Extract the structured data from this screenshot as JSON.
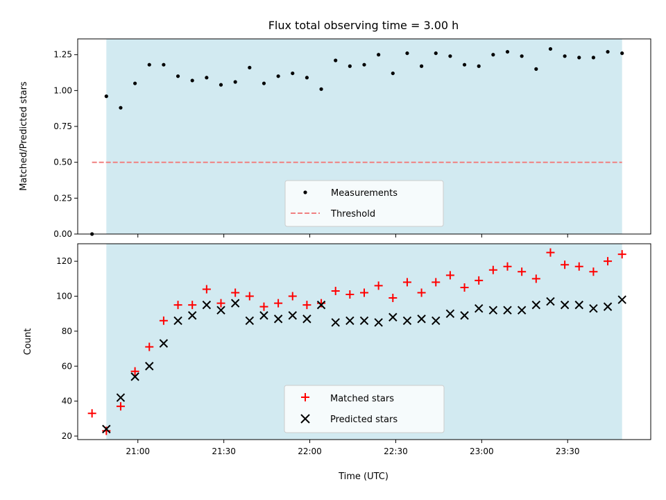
{
  "chart_data": [
    {
      "type": "scatter",
      "title": "Flux total observing time = 3.00 h",
      "xlabel": "",
      "ylabel": "Matched/Predicted stars",
      "xlim": [
        "20:39",
        "23:59"
      ],
      "ylim": [
        0.0,
        1.36
      ],
      "yticks": [
        "0.00",
        "0.25",
        "0.50",
        "0.75",
        "1.00",
        "1.25"
      ],
      "shaded_interval": [
        "20:49",
        "23:49"
      ],
      "shade_color": "#add8e6",
      "legend_position": "lower center",
      "series": [
        {
          "name": "Measurements",
          "marker": "dot",
          "color": "#000000",
          "x": [
            "20:44",
            "20:49",
            "20:54",
            "20:59",
            "21:04",
            "21:09",
            "21:14",
            "21:19",
            "21:24",
            "21:29",
            "21:34",
            "21:39",
            "21:44",
            "21:49",
            "21:54",
            "21:59",
            "22:04",
            "22:09",
            "22:14",
            "22:19",
            "22:24",
            "22:29",
            "22:34",
            "22:39",
            "22:44",
            "22:49",
            "22:54",
            "22:59",
            "23:04",
            "23:09",
            "23:14",
            "23:19",
            "23:24",
            "23:29",
            "23:34",
            "23:39",
            "23:44",
            "23:49"
          ],
          "y": [
            0.0,
            0.96,
            0.88,
            1.05,
            1.18,
            1.18,
            1.1,
            1.07,
            1.09,
            1.04,
            1.06,
            1.16,
            1.05,
            1.1,
            1.12,
            1.09,
            1.01,
            1.21,
            1.17,
            1.18,
            1.25,
            1.12,
            1.26,
            1.17,
            1.26,
            1.24,
            1.18,
            1.17,
            1.25,
            1.27,
            1.24,
            1.15,
            1.29,
            1.24,
            1.23,
            1.23,
            1.27,
            1.26
          ]
        },
        {
          "name": "Threshold",
          "style": "dashed",
          "color": "#f08080",
          "x": [
            "20:44",
            "23:49"
          ],
          "y": [
            0.5,
            0.5
          ]
        }
      ]
    },
    {
      "type": "scatter",
      "title": "",
      "xlabel": "Time (UTC)",
      "ylabel": "Count",
      "xlim": [
        "20:39",
        "23:59"
      ],
      "ylim": [
        18,
        130
      ],
      "xticks": [
        "21:00",
        "21:30",
        "22:00",
        "22:30",
        "23:00",
        "23:30"
      ],
      "yticks": [
        "20",
        "40",
        "60",
        "80",
        "100",
        "120"
      ],
      "shaded_interval": [
        "20:49",
        "23:49"
      ],
      "shade_color": "#add8e6",
      "legend_position": "lower center",
      "series": [
        {
          "name": "Matched stars",
          "marker": "plus",
          "color": "#ff0000",
          "x": [
            "20:44",
            "20:49",
            "20:54",
            "20:59",
            "21:04",
            "21:09",
            "21:14",
            "21:19",
            "21:24",
            "21:29",
            "21:34",
            "21:39",
            "21:44",
            "21:49",
            "21:54",
            "21:59",
            "22:04",
            "22:09",
            "22:14",
            "22:19",
            "22:24",
            "22:29",
            "22:34",
            "22:39",
            "22:44",
            "22:49",
            "22:54",
            "22:59",
            "23:04",
            "23:09",
            "23:14",
            "23:19",
            "23:24",
            "23:29",
            "23:34",
            "23:39",
            "23:44",
            "23:49"
          ],
          "y": [
            33,
            23,
            37,
            57,
            71,
            86,
            95,
            95,
            104,
            96,
            102,
            100,
            94,
            96,
            100,
            95,
            96,
            103,
            101,
            102,
            106,
            99,
            108,
            102,
            108,
            112,
            105,
            109,
            115,
            117,
            114,
            110,
            125,
            118,
            117,
            114,
            120,
            124
          ]
        },
        {
          "name": "Predicted stars",
          "marker": "x",
          "color": "#000000",
          "x": [
            "20:49",
            "20:54",
            "20:59",
            "21:04",
            "21:09",
            "21:14",
            "21:19",
            "21:24",
            "21:29",
            "21:34",
            "21:39",
            "21:44",
            "21:49",
            "21:54",
            "21:59",
            "22:04",
            "22:09",
            "22:14",
            "22:19",
            "22:24",
            "22:29",
            "22:34",
            "22:39",
            "22:44",
            "22:49",
            "22:54",
            "22:59",
            "23:04",
            "23:09",
            "23:14",
            "23:19",
            "23:24",
            "23:29",
            "23:34",
            "23:39",
            "23:44",
            "23:49"
          ],
          "y": [
            24,
            42,
            54,
            60,
            73,
            86,
            89,
            95,
            92,
            96,
            86,
            89,
            87,
            89,
            87,
            95,
            85,
            86,
            86,
            85,
            88,
            86,
            87,
            86,
            90,
            89,
            93,
            92,
            92,
            92,
            95,
            97,
            95,
            95,
            93,
            94,
            98
          ]
        }
      ]
    }
  ]
}
